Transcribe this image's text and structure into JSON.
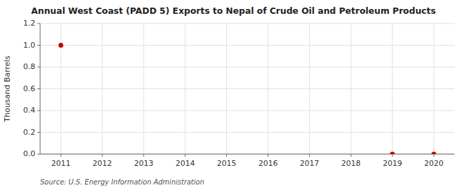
{
  "chart_data": {
    "type": "scatter",
    "title": "Annual West Coast (PADD 5) Exports to Nepal of Crude Oil and Petroleum Products",
    "y_label": "Thousand Barrels",
    "annotations": [
      "Source: U.S. Energy Information Administration"
    ],
    "x": [
      2011,
      2019,
      2020
    ],
    "values": [
      1.0,
      0.0,
      0.0
    ],
    "color": "#cc0000",
    "xlim": [
      2010.5,
      2020.5
    ],
    "ylim": [
      0.0,
      1.2
    ],
    "xticks": [
      2011,
      2012,
      2013,
      2014,
      2015,
      2016,
      2017,
      2018,
      2019,
      2020
    ],
    "yticks": [
      {
        "value": 0.0,
        "label": "0.0"
      },
      0.2,
      0.4,
      0.6,
      0.8,
      {
        "value": 1.0,
        "label": "1.0"
      },
      1.2
    ],
    "grid": true
  }
}
